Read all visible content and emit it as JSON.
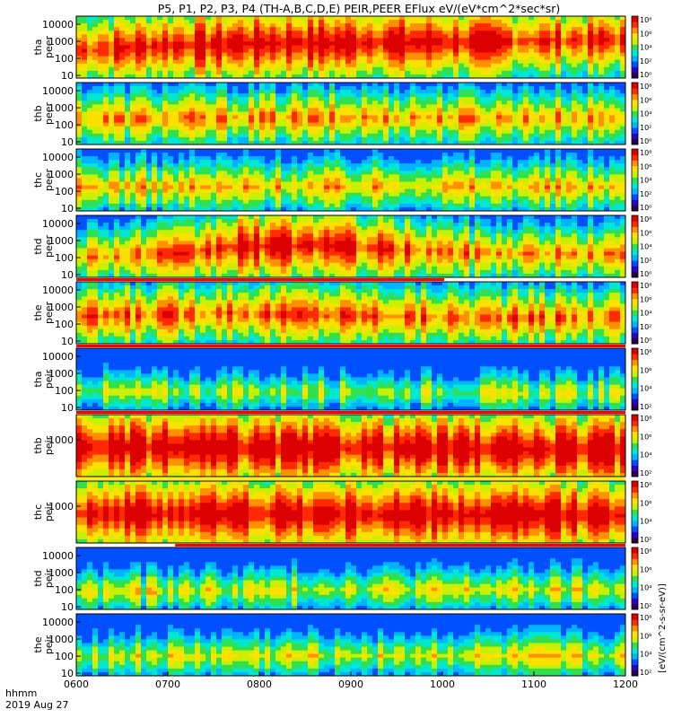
{
  "title": "P5, P1, P2, P3, P4 (TH-A,B,C,D,E) PEIR,PEER EFlux eV/(eV*cm^2*sec*sr)",
  "time_axis": {
    "label_line1": "hhmm",
    "label_line2": "2019 Aug 27",
    "ticks": [
      "0600",
      "0700",
      "0800",
      "0900",
      "1000",
      "1100",
      "1200"
    ]
  },
  "colorbar": {
    "unit_label": "[eV/(cm^2-s-sr-eV)]",
    "ticks_peer": [
      "10^0",
      "10^2",
      "10^4",
      "10^6",
      "10^8"
    ],
    "ticks_peir": [
      "10^2",
      "10^4",
      "10^6",
      "10^8"
    ],
    "colors": [
      "#2a0045",
      "#3000c8",
      "#0050ff",
      "#00b4ff",
      "#00e8d0",
      "#30e050",
      "#c8f000",
      "#ffe000",
      "#ff9000",
      "#ff2a00",
      "#dc0000"
    ]
  },
  "chart_data": {
    "type": "heatmap",
    "x_range": [
      "0600",
      "1200"
    ],
    "panels": [
      {
        "probe": "tha",
        "species": "peer",
        "ylabel_1": "tha",
        "ylabel_2": "peer",
        "yticks": [
          "10",
          "100",
          "1000",
          "10000"
        ],
        "ylog": true,
        "ylim": [
          7,
          30000
        ],
        "profile": [
          [
            0.0,
            6.2,
            0.5
          ],
          [
            0.12,
            6.6,
            0.55
          ],
          [
            0.3,
            7.0,
            0.6
          ],
          [
            0.55,
            7.1,
            0.6
          ],
          [
            0.72,
            7.2,
            0.55
          ],
          [
            0.85,
            7.3,
            0.5
          ],
          [
            1.0,
            7.5,
            0.5
          ]
        ],
        "strip": null
      },
      {
        "probe": "thb",
        "species": "peer",
        "ylabel_1": "thb",
        "ylabel_2": "peer",
        "yticks": [
          "10",
          "100",
          "1000",
          "10000"
        ],
        "ylog": true,
        "ylim": [
          7,
          30000
        ],
        "profile": [
          [
            0.0,
            6.0,
            0.35
          ],
          [
            0.5,
            6.1,
            0.35
          ],
          [
            1.0,
            6.0,
            0.35
          ]
        ],
        "strip": null
      },
      {
        "probe": "thc",
        "species": "peer",
        "ylabel_1": "thc",
        "ylabel_2": "peer",
        "yticks": [
          "10",
          "100",
          "1000",
          "10000"
        ],
        "ylog": true,
        "ylim": [
          7,
          30000
        ],
        "profile": [
          [
            0.0,
            5.8,
            0.3
          ],
          [
            0.5,
            5.9,
            0.3
          ],
          [
            1.0,
            5.8,
            0.3
          ]
        ],
        "strip": null
      },
      {
        "probe": "thd",
        "species": "peer",
        "ylabel_1": "thd",
        "ylabel_2": "peer",
        "yticks": [
          "10",
          "100",
          "1000",
          "10000"
        ],
        "ylog": true,
        "ylim": [
          7,
          30000
        ],
        "profile": [
          [
            0.0,
            5.4,
            0.35
          ],
          [
            0.2,
            5.8,
            0.4
          ],
          [
            0.3,
            6.6,
            0.55
          ],
          [
            0.45,
            6.8,
            0.55
          ],
          [
            0.58,
            6.2,
            0.45
          ],
          [
            0.75,
            5.8,
            0.35
          ],
          [
            1.0,
            5.7,
            0.35
          ]
        ],
        "strip": null
      },
      {
        "probe": "the",
        "species": "peer",
        "ylabel_1": "the",
        "ylabel_2": "peer",
        "yticks": [
          "10",
          "100",
          "1000",
          "10000"
        ],
        "ylog": true,
        "ylim": [
          7,
          30000
        ],
        "profile": [
          [
            0.0,
            6.2,
            0.4
          ],
          [
            0.3,
            6.5,
            0.45
          ],
          [
            0.5,
            6.3,
            0.45
          ],
          [
            0.7,
            6.0,
            0.4
          ],
          [
            1.0,
            6.0,
            0.4
          ]
        ],
        "strip": {
          "color": "#ff0000",
          "from": 0.0,
          "to": 0.67
        }
      },
      {
        "probe": "tha",
        "species": "peir",
        "ylabel_1": "tha",
        "ylabel_2": "peir",
        "yticks": [
          "10",
          "100",
          "1000",
          "10000"
        ],
        "ylog": true,
        "ylim": [
          7,
          30000
        ],
        "profile": [
          [
            0.0,
            5.3,
            0.15
          ],
          [
            0.1,
            5.2,
            0.15
          ],
          [
            0.5,
            5.1,
            0.15
          ],
          [
            1.0,
            5.0,
            0.15
          ]
        ],
        "strip": {
          "color": "#ff0000",
          "from": 0.0,
          "to": 1.0
        }
      },
      {
        "probe": "thb",
        "species": "peir",
        "ylabel_1": "thb",
        "ylabel_2": "peir",
        "yticks": [
          "1000"
        ],
        "ylog": true,
        "ylim": [
          7,
          30000
        ],
        "profile": [
          [
            0.0,
            6.4,
            0.6
          ],
          [
            0.5,
            6.3,
            0.6
          ],
          [
            1.0,
            6.1,
            0.6
          ]
        ],
        "strip": {
          "color": "#ff0000",
          "from": 0.0,
          "to": 1.0
        }
      },
      {
        "probe": "thc",
        "species": "peir",
        "ylabel_1": "thc",
        "ylabel_2": "peir",
        "yticks": [
          "1000"
        ],
        "ylog": true,
        "ylim": [
          7,
          30000
        ],
        "profile": [
          [
            0.0,
            6.4,
            0.6
          ],
          [
            0.5,
            6.3,
            0.6
          ],
          [
            1.0,
            6.2,
            0.6
          ]
        ],
        "strip": {
          "color": "#ffee00",
          "from": 0.0,
          "to": 1.0
        }
      },
      {
        "probe": "thd",
        "species": "peir",
        "ylabel_1": "thd",
        "ylabel_2": "peir",
        "yticks": [
          "10",
          "100",
          "1000",
          "10000"
        ],
        "ylog": true,
        "ylim": [
          7,
          30000
        ],
        "profile": [
          [
            0.0,
            5.1,
            0.2
          ],
          [
            0.5,
            5.3,
            0.2
          ],
          [
            1.0,
            5.3,
            0.2
          ]
        ],
        "strip": {
          "color": "#ff0000",
          "from": 0.18,
          "to": 1.0
        }
      },
      {
        "probe": "the",
        "species": "peir",
        "ylabel_1": "the",
        "ylabel_2": "peir",
        "yticks": [
          "10",
          "100",
          "1000",
          "10000"
        ],
        "ylog": true,
        "ylim": [
          7,
          30000
        ],
        "profile": [
          [
            0.0,
            5.2,
            0.2
          ],
          [
            0.5,
            5.4,
            0.2
          ],
          [
            1.0,
            5.3,
            0.2
          ]
        ],
        "strip": null
      }
    ]
  }
}
